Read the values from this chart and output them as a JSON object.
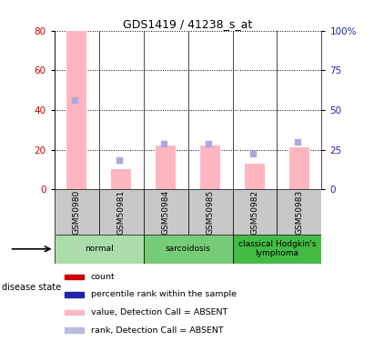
{
  "title": "GDS1419 / 41238_s_at",
  "samples": [
    "GSM50980",
    "GSM50981",
    "GSM50984",
    "GSM50985",
    "GSM50982",
    "GSM50983"
  ],
  "bar_values_pink": [
    80,
    10,
    22,
    22,
    13,
    21
  ],
  "dot_values_blue": [
    45,
    15,
    23,
    23,
    18,
    24
  ],
  "left_ylim": [
    0,
    80
  ],
  "right_ylim": [
    0,
    100
  ],
  "left_yticks": [
    0,
    20,
    40,
    60,
    80
  ],
  "right_yticks": [
    0,
    25,
    50,
    75,
    100
  ],
  "right_yticklabels": [
    "0",
    "25",
    "50",
    "75",
    "100%"
  ],
  "groups": [
    {
      "label": "normal",
      "start": 0,
      "end": 1,
      "color": "#AADDAA"
    },
    {
      "label": "sarcoidosis",
      "start": 2,
      "end": 3,
      "color": "#77CC77"
    },
    {
      "label": "classical Hodgkin's\nlymphoma",
      "start": 4,
      "end": 5,
      "color": "#44BB44"
    }
  ],
  "bar_color_pink": "#FFB6C1",
  "dot_color_blue": "#6666BB",
  "dot_color_blue2": "#AAAADD",
  "sample_bg_color": "#C8C8C8",
  "legend_items": [
    {
      "color": "#CC0000",
      "label": "count"
    },
    {
      "color": "#2222AA",
      "label": "percentile rank within the sample"
    },
    {
      "color": "#FFB6C1",
      "label": "value, Detection Call = ABSENT"
    },
    {
      "color": "#BBBBDD",
      "label": "rank, Detection Call = ABSENT"
    }
  ],
  "left_ylabel_color": "#CC0000",
  "right_ylabel_color": "#2222AA"
}
